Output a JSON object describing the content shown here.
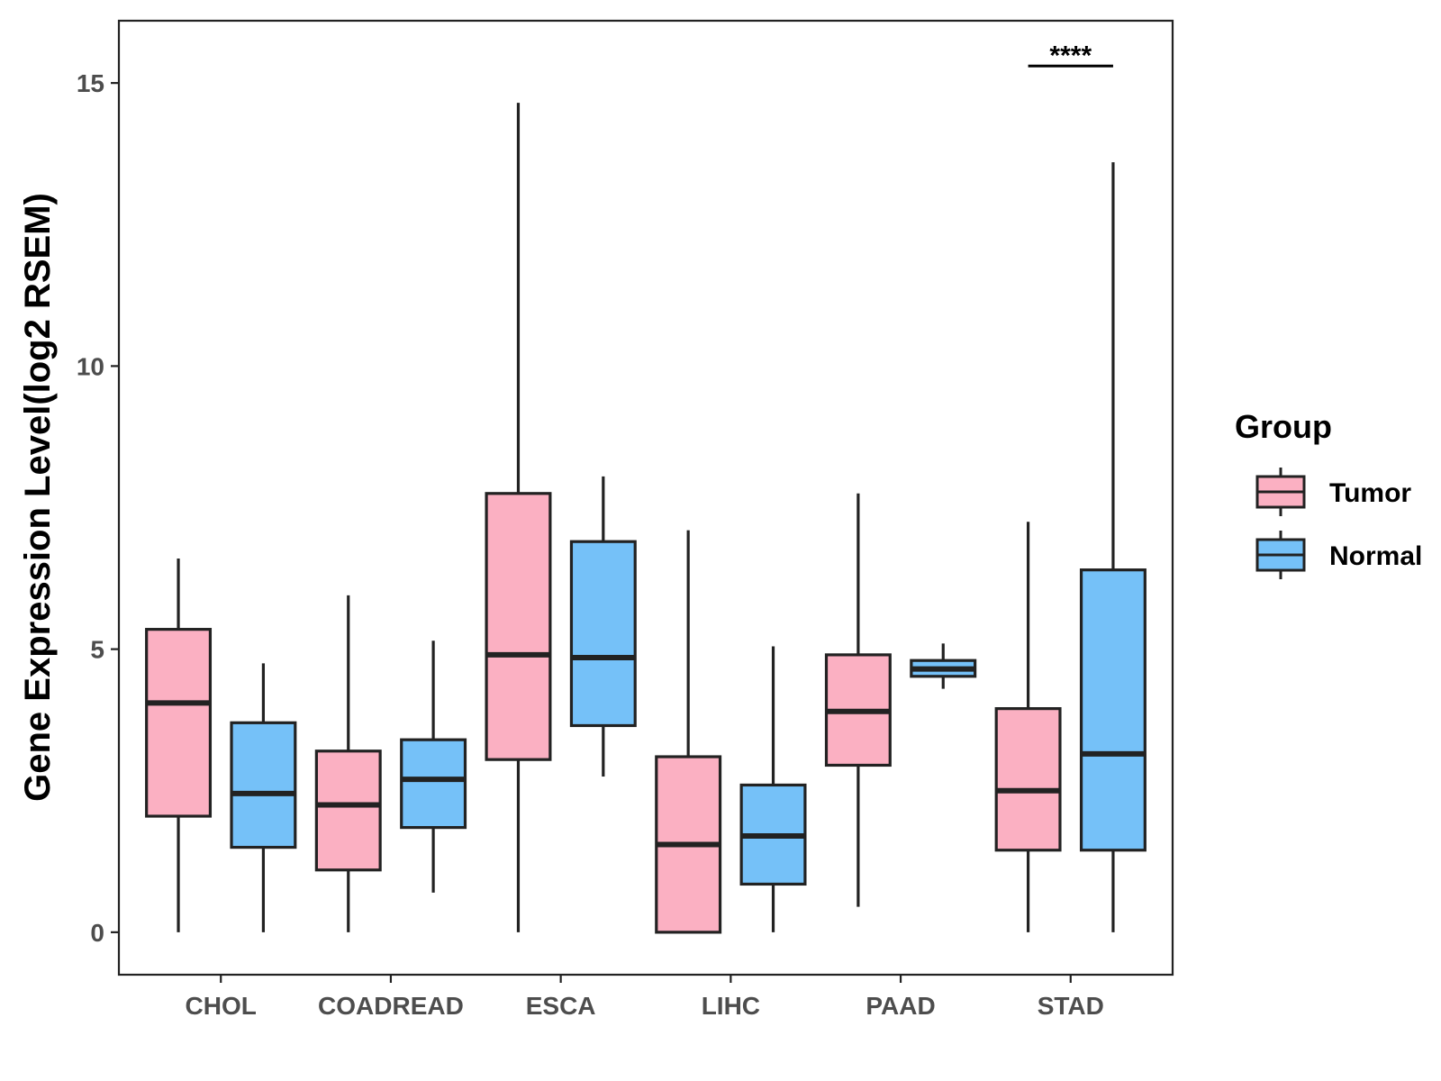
{
  "chart_data": {
    "type": "boxplot",
    "ylabel": "Gene Expression Level(log2 RSEM)",
    "xlabel": "",
    "ylim": [
      -0.75,
      16.1
    ],
    "yticks": [
      0,
      5,
      10,
      15
    ],
    "categories": [
      "CHOL",
      "COADREAD",
      "ESCA",
      "LIHC",
      "PAAD",
      "STAD"
    ],
    "legend": {
      "title": "Group",
      "position": "right",
      "entries": [
        {
          "name": "Tumor",
          "color": "#FBB0C2"
        },
        {
          "name": "Normal",
          "color": "#75C1F8"
        }
      ]
    },
    "series": [
      {
        "name": "Tumor",
        "color": "#FBB0C2",
        "boxes": [
          {
            "category": "CHOL",
            "min": 0.0,
            "q1": 2.05,
            "median": 4.05,
            "q3": 5.35,
            "max": 6.6
          },
          {
            "category": "COADREAD",
            "min": 0.0,
            "q1": 1.1,
            "median": 2.25,
            "q3": 3.2,
            "max": 5.95
          },
          {
            "category": "ESCA",
            "min": 0.0,
            "q1": 3.05,
            "median": 4.9,
            "q3": 7.75,
            "max": 14.65
          },
          {
            "category": "LIHC",
            "min": 0.0,
            "q1": 0.0,
            "median": 1.55,
            "q3": 3.1,
            "max": 7.1
          },
          {
            "category": "PAAD",
            "min": 0.45,
            "q1": 2.95,
            "median": 3.9,
            "q3": 4.9,
            "max": 7.75
          },
          {
            "category": "STAD",
            "min": 0.0,
            "q1": 1.45,
            "median": 2.5,
            "q3": 3.95,
            "max": 7.25
          }
        ]
      },
      {
        "name": "Normal",
        "color": "#75C1F8",
        "boxes": [
          {
            "category": "CHOL",
            "min": 0.0,
            "q1": 1.5,
            "median": 2.45,
            "q3": 3.7,
            "max": 4.75
          },
          {
            "category": "COADREAD",
            "min": 0.7,
            "q1": 1.85,
            "median": 2.7,
            "q3": 3.4,
            "max": 5.15
          },
          {
            "category": "ESCA",
            "min": 2.75,
            "q1": 3.65,
            "median": 4.85,
            "q3": 6.9,
            "max": 8.05
          },
          {
            "category": "LIHC",
            "min": 0.0,
            "q1": 0.85,
            "median": 1.7,
            "q3": 2.6,
            "max": 5.05
          },
          {
            "category": "PAAD",
            "min": 4.3,
            "q1": 4.52,
            "median": 4.65,
            "q3": 4.8,
            "max": 5.1
          },
          {
            "category": "STAD",
            "min": 0.0,
            "q1": 1.45,
            "median": 3.15,
            "q3": 6.4,
            "max": 13.6
          }
        ]
      }
    ],
    "annotations": [
      {
        "category": "STAD",
        "text": "****",
        "y": 15.3
      }
    ]
  }
}
